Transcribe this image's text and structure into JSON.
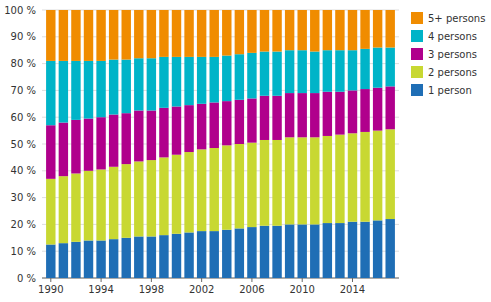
{
  "chart_data": {
    "type": "bar",
    "stacked": true,
    "grid": true,
    "legend": "right",
    "x": [
      1990,
      1991,
      1992,
      1993,
      1994,
      1995,
      1996,
      1997,
      1998,
      1999,
      2000,
      2001,
      2002,
      2003,
      2004,
      2005,
      2006,
      2007,
      2008,
      2009,
      2010,
      2011,
      2012,
      2013,
      2014,
      2015,
      2016,
      2017
    ],
    "series": [
      {
        "name": "1 person",
        "color": "#1f6eb5",
        "values": [
          12.5,
          13.0,
          13.5,
          14.0,
          14.0,
          14.5,
          15.0,
          15.5,
          15.5,
          16.0,
          16.5,
          17.0,
          17.5,
          17.5,
          18.0,
          18.5,
          19.0,
          19.5,
          19.5,
          20.0,
          20.0,
          20.0,
          20.5,
          20.5,
          21.0,
          21.0,
          21.5,
          22.0
        ]
      },
      {
        "name": "2 persons",
        "color": "#c8d832",
        "values": [
          24.5,
          25.0,
          25.5,
          26.0,
          26.5,
          27.0,
          27.5,
          28.0,
          28.5,
          29.0,
          29.5,
          30.0,
          30.5,
          31.0,
          31.5,
          31.5,
          31.5,
          32.0,
          32.0,
          32.5,
          32.5,
          32.5,
          32.5,
          33.0,
          33.0,
          33.5,
          33.5,
          33.5
        ]
      },
      {
        "name": "3 persons",
        "color": "#b0008c",
        "values": [
          20.0,
          20.0,
          20.0,
          19.5,
          19.5,
          19.5,
          19.0,
          19.0,
          18.5,
          18.5,
          18.0,
          17.5,
          17.0,
          17.0,
          16.5,
          16.5,
          16.5,
          16.5,
          16.5,
          16.5,
          16.5,
          16.5,
          16.5,
          16.0,
          16.0,
          16.0,
          16.0,
          16.0
        ]
      },
      {
        "name": "4 persons",
        "color": "#00b4c8",
        "values": [
          24.0,
          23.0,
          22.0,
          21.5,
          21.0,
          20.5,
          20.0,
          19.5,
          19.5,
          19.0,
          18.5,
          18.0,
          17.5,
          17.0,
          17.0,
          17.0,
          17.0,
          16.5,
          16.5,
          16.0,
          16.0,
          15.5,
          15.5,
          15.5,
          15.0,
          15.0,
          15.0,
          14.5
        ]
      },
      {
        "name": "5+ persons",
        "color": "#f08c00",
        "values": [
          19.0,
          19.0,
          19.0,
          19.0,
          19.0,
          18.5,
          18.5,
          18.0,
          18.0,
          17.5,
          17.5,
          17.5,
          17.5,
          17.5,
          17.0,
          16.5,
          16.0,
          15.5,
          15.5,
          15.0,
          15.0,
          15.5,
          15.0,
          15.0,
          15.0,
          14.5,
          14.0,
          14.0
        ]
      }
    ],
    "xlim": [
      1989.3,
      2017.7
    ],
    "xticks": [
      1990,
      1994,
      1998,
      2002,
      2006,
      2010,
      2014
    ],
    "ylim": [
      0,
      100
    ],
    "yticks": [
      {
        "value": 0,
        "label": "0 %"
      },
      {
        "value": 10,
        "label": "10 %"
      },
      {
        "value": 20,
        "label": "20 %"
      },
      {
        "value": 30,
        "label": "30 %"
      },
      {
        "value": 40,
        "label": "40 %"
      },
      {
        "value": 50,
        "label": "50 %"
      },
      {
        "value": 60,
        "label": "60 %"
      },
      {
        "value": 70,
        "label": "70 %"
      },
      {
        "value": 80,
        "label": "80 %"
      },
      {
        "value": 90,
        "label": "90 %"
      },
      {
        "value": 100,
        "label": "100 %"
      }
    ]
  }
}
